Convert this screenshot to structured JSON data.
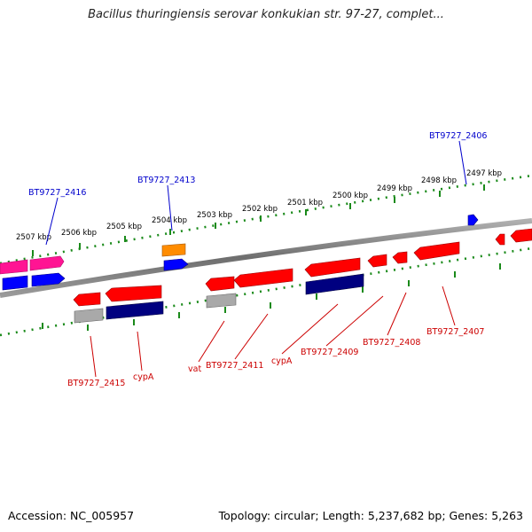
{
  "header": {
    "title": "Bacillus thuringiensis serovar konkukian str. 97-27, complet..."
  },
  "footer": {
    "accession": "Accession: NC_005957",
    "topology": "Topology: circular; Length: 5,237,682 bp; Genes: 5,263"
  },
  "colors": {
    "backbone": "#7a7a7a",
    "tick_dots": "#1a8a1a",
    "label_top": "#0000cc",
    "label_bottom": "#cc0000",
    "gene_red": "#ff0000",
    "gene_magenta": "#ff1493",
    "gene_blue": "#0000ff",
    "gene_navy": "#000080",
    "gene_orange": "#ff8c00",
    "gene_gray": "#a9a9a9"
  },
  "ticks": [
    "2507 kbp",
    "2506 kbp",
    "2505 kbp",
    "2504 kbp",
    "2503 kbp",
    "2502 kbp",
    "2501 kbp",
    "2500 kbp",
    "2499 kbp",
    "2498 kbp",
    "2497 kbp"
  ],
  "labels_top": [
    "BT9727_2416",
    "BT9727_2413",
    "BT9727_2406"
  ],
  "labels_bottom": [
    "BT9727_2415",
    "cypA",
    "vat",
    "BT9727_2411",
    "cypA",
    "BT9727_2409",
    "BT9727_2408",
    "BT9727_2407"
  ]
}
